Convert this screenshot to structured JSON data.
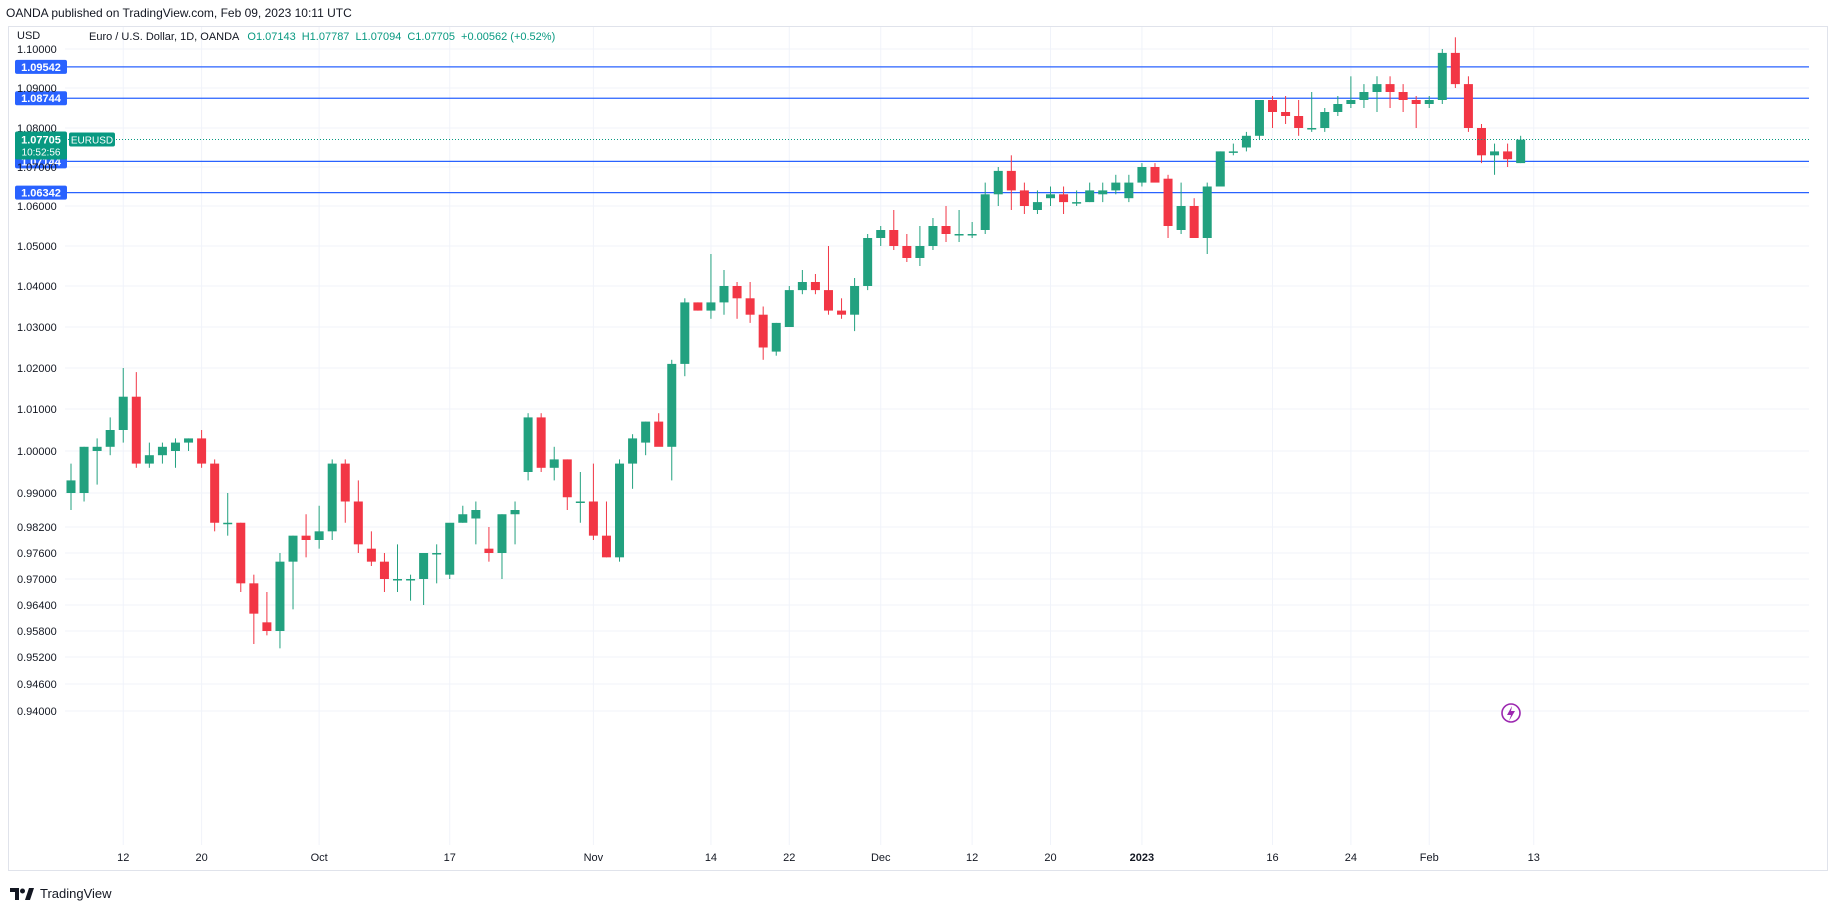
{
  "published": "OANDA published on TradingView.com, Feb 09, 2023 10:11 UTC",
  "footer_brand": "TradingView",
  "colors": {
    "up": "#22a17f",
    "down": "#f23645",
    "hline": "#2962ff",
    "grid": "#f0f3fa",
    "price_label": "#089981"
  },
  "chart_data": {
    "type": "candlestick",
    "title": "Euro / U.S. Dollar, 1D, OANDA",
    "ohlc_header": {
      "o": "O1.07143",
      "h": "H1.07787",
      "l": "L1.07094",
      "c": "C1.07705",
      "change": "+0.00562 (+0.52%)"
    },
    "currency": "USD",
    "symbol": "EURUSD",
    "last_price": "1.07705",
    "countdown": "10:52:56",
    "y_ticks": [
      "1.10000",
      "1.09000",
      "1.08000",
      "1.07000",
      "1.06000",
      "1.05000",
      "1.04000",
      "1.03000",
      "1.02000",
      "1.01000",
      "1.00000",
      "0.99000",
      "0.98200",
      "0.97600",
      "0.97000",
      "0.96400",
      "0.95800",
      "0.95200",
      "0.94600",
      "0.94000"
    ],
    "horizontal_levels": [
      "1.09542",
      "1.08744",
      "1.07144",
      "1.06342"
    ],
    "x_ticks": [
      {
        "label": "12",
        "i": 4
      },
      {
        "label": "20",
        "i": 10
      },
      {
        "label": "Oct",
        "i": 19
      },
      {
        "label": "17",
        "i": 29
      },
      {
        "label": "Nov",
        "i": 40
      },
      {
        "label": "14",
        "i": 49
      },
      {
        "label": "22",
        "i": 55
      },
      {
        "label": "Dec",
        "i": 62
      },
      {
        "label": "12",
        "i": 69
      },
      {
        "label": "20",
        "i": 75
      },
      {
        "label": "2023",
        "i": 82
      },
      {
        "label": "16",
        "i": 92
      },
      {
        "label": "24",
        "i": 98
      },
      {
        "label": "Feb",
        "i": 104
      },
      {
        "label": "13",
        "i": 112
      }
    ],
    "candles": [
      [
        0.99,
        0.997,
        0.986,
        0.993
      ],
      [
        0.99,
        1.001,
        0.988,
        1.001
      ],
      [
        1.0,
        1.003,
        0.992,
        1.001
      ],
      [
        1.001,
        1.008,
        0.999,
        1.005
      ],
      [
        1.005,
        1.02,
        1.002,
        1.013
      ],
      [
        1.013,
        1.019,
        0.996,
        0.997
      ],
      [
        0.997,
        1.002,
        0.996,
        0.999
      ],
      [
        0.999,
        1.002,
        0.997,
        1.001
      ],
      [
        1.0,
        1.003,
        0.996,
        1.002
      ],
      [
        1.002,
        1.003,
        1.0,
        1.003
      ],
      [
        1.003,
        1.005,
        0.996,
        0.997
      ],
      [
        0.997,
        0.998,
        0.981,
        0.983
      ],
      [
        0.983,
        0.99,
        0.98,
        0.983
      ],
      [
        0.983,
        0.983,
        0.967,
        0.969
      ],
      [
        0.969,
        0.971,
        0.955,
        0.962
      ],
      [
        0.96,
        0.967,
        0.957,
        0.958
      ],
      [
        0.958,
        0.976,
        0.954,
        0.974
      ],
      [
        0.974,
        0.98,
        0.963,
        0.98
      ],
      [
        0.98,
        0.985,
        0.975,
        0.979
      ],
      [
        0.979,
        0.987,
        0.977,
        0.981
      ],
      [
        0.981,
        0.998,
        0.979,
        0.997
      ],
      [
        0.997,
        0.998,
        0.983,
        0.988
      ],
      [
        0.988,
        0.993,
        0.976,
        0.978
      ],
      [
        0.977,
        0.981,
        0.973,
        0.974
      ],
      [
        0.974,
        0.976,
        0.967,
        0.97
      ],
      [
        0.97,
        0.978,
        0.967,
        0.97
      ],
      [
        0.97,
        0.971,
        0.965,
        0.97
      ],
      [
        0.97,
        0.975,
        0.964,
        0.976
      ],
      [
        0.976,
        0.978,
        0.969,
        0.976
      ],
      [
        0.971,
        0.982,
        0.97,
        0.983
      ],
      [
        0.983,
        0.987,
        0.983,
        0.985
      ],
      [
        0.984,
        0.988,
        0.978,
        0.986
      ],
      [
        0.977,
        0.982,
        0.974,
        0.976
      ],
      [
        0.976,
        0.985,
        0.97,
        0.985
      ],
      [
        0.985,
        0.988,
        0.978,
        0.986
      ],
      [
        0.995,
        1.009,
        0.993,
        1.008
      ],
      [
        1.008,
        1.009,
        0.995,
        0.996
      ],
      [
        0.996,
        1.001,
        0.993,
        0.998
      ],
      [
        0.998,
        0.998,
        0.986,
        0.989
      ],
      [
        0.988,
        0.995,
        0.983,
        0.988
      ],
      [
        0.988,
        0.997,
        0.979,
        0.98
      ],
      [
        0.98,
        0.988,
        0.975,
        0.975
      ],
      [
        0.975,
        0.998,
        0.974,
        0.997
      ],
      [
        0.997,
        1.004,
        0.991,
        1.003
      ],
      [
        1.002,
        1.007,
        0.999,
        1.007
      ],
      [
        1.007,
        1.009,
        1.002,
        1.001
      ],
      [
        1.001,
        1.022,
        0.993,
        1.021
      ],
      [
        1.021,
        1.037,
        1.018,
        1.036
      ],
      [
        1.036,
        1.036,
        1.034,
        1.034
      ],
      [
        1.034,
        1.048,
        1.032,
        1.036
      ],
      [
        1.036,
        1.044,
        1.033,
        1.04
      ],
      [
        1.04,
        1.041,
        1.032,
        1.037
      ],
      [
        1.037,
        1.041,
        1.031,
        1.033
      ],
      [
        1.033,
        1.035,
        1.022,
        1.025
      ],
      [
        1.024,
        1.031,
        1.023,
        1.031
      ],
      [
        1.03,
        1.04,
        1.03,
        1.039
      ],
      [
        1.039,
        1.044,
        1.038,
        1.041
      ],
      [
        1.041,
        1.043,
        1.038,
        1.039
      ],
      [
        1.039,
        1.05,
        1.033,
        1.034
      ],
      [
        1.034,
        1.037,
        1.032,
        1.033
      ],
      [
        1.033,
        1.042,
        1.029,
        1.04
      ],
      [
        1.04,
        1.053,
        1.039,
        1.052
      ],
      [
        1.052,
        1.055,
        1.05,
        1.054
      ],
      [
        1.054,
        1.059,
        1.049,
        1.05
      ],
      [
        1.05,
        1.053,
        1.046,
        1.047
      ],
      [
        1.047,
        1.055,
        1.045,
        1.05
      ],
      [
        1.05,
        1.057,
        1.049,
        1.055
      ],
      [
        1.055,
        1.06,
        1.051,
        1.053
      ],
      [
        1.053,
        1.059,
        1.051,
        1.053
      ],
      [
        1.053,
        1.056,
        1.052,
        1.053
      ],
      [
        1.054,
        1.066,
        1.053,
        1.063
      ],
      [
        1.063,
        1.07,
        1.06,
        1.069
      ],
      [
        1.069,
        1.073,
        1.059,
        1.064
      ],
      [
        1.064,
        1.066,
        1.058,
        1.06
      ],
      [
        1.059,
        1.064,
        1.058,
        1.061
      ],
      [
        1.062,
        1.065,
        1.06,
        1.063
      ],
      [
        1.063,
        1.065,
        1.058,
        1.061
      ],
      [
        1.061,
        1.064,
        1.06,
        1.061
      ],
      [
        1.061,
        1.066,
        1.061,
        1.064
      ],
      [
        1.063,
        1.066,
        1.061,
        1.064
      ],
      [
        1.064,
        1.068,
        1.063,
        1.066
      ],
      [
        1.062,
        1.068,
        1.061,
        1.066
      ],
      [
        1.066,
        1.071,
        1.065,
        1.07
      ],
      [
        1.07,
        1.071,
        1.067,
        1.066
      ],
      [
        1.067,
        1.068,
        1.052,
        1.055
      ],
      [
        1.054,
        1.066,
        1.053,
        1.06
      ],
      [
        1.06,
        1.062,
        1.052,
        1.052
      ],
      [
        1.052,
        1.066,
        1.048,
        1.065
      ],
      [
        1.065,
        1.074,
        1.065,
        1.074
      ],
      [
        1.074,
        1.076,
        1.073,
        1.074
      ],
      [
        1.075,
        1.079,
        1.074,
        1.078
      ],
      [
        1.078,
        1.087,
        1.077,
        1.087
      ],
      [
        1.087,
        1.088,
        1.08,
        1.084
      ],
      [
        1.084,
        1.088,
        1.081,
        1.083
      ],
      [
        1.083,
        1.087,
        1.078,
        1.08
      ],
      [
        1.08,
        1.089,
        1.079,
        1.08
      ],
      [
        1.08,
        1.085,
        1.079,
        1.084
      ],
      [
        1.084,
        1.088,
        1.083,
        1.086
      ],
      [
        1.086,
        1.093,
        1.085,
        1.087
      ],
      [
        1.087,
        1.091,
        1.085,
        1.089
      ],
      [
        1.089,
        1.093,
        1.084,
        1.091
      ],
      [
        1.091,
        1.093,
        1.085,
        1.089
      ],
      [
        1.089,
        1.091,
        1.084,
        1.087
      ],
      [
        1.087,
        1.088,
        1.08,
        1.086
      ],
      [
        1.086,
        1.088,
        1.085,
        1.087
      ],
      [
        1.087,
        1.1,
        1.086,
        1.099
      ],
      [
        1.099,
        1.103,
        1.09,
        1.091
      ],
      [
        1.091,
        1.093,
        1.079,
        1.08
      ],
      [
        1.08,
        1.081,
        1.071,
        1.073
      ],
      [
        1.073,
        1.076,
        1.068,
        1.074
      ],
      [
        1.074,
        1.076,
        1.07,
        1.072
      ],
      [
        1.071,
        1.078,
        1.071,
        1.077
      ]
    ]
  }
}
